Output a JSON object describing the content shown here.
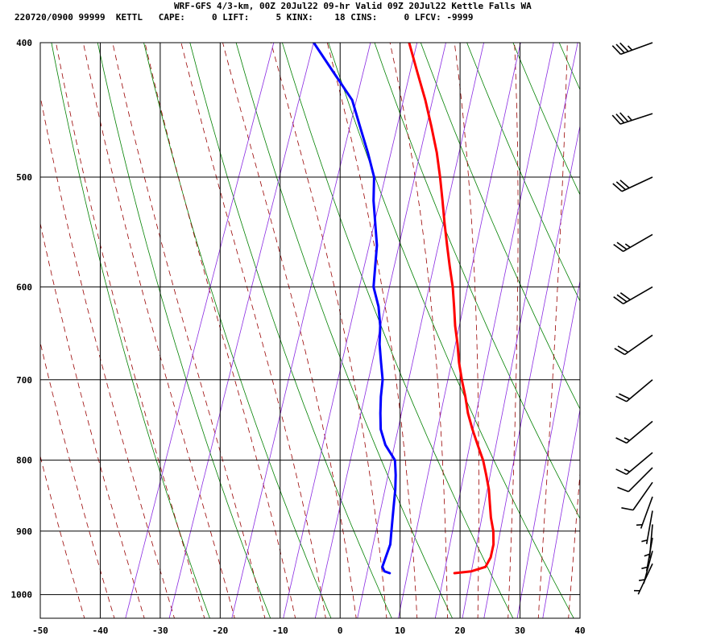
{
  "header": {
    "title": "WRF-GFS 4/3-km, 00Z 20Jul22 09-hr Valid 09Z 20Jul22 Kettle Falls WA",
    "stats": "220720/0900 99999  KETTL   CAPE:     0 LIFT:     5 KINX:    18 CINS:     0 LFCV: -9999"
  },
  "colors": {
    "temperature": "#ff0000",
    "dewpoint": "#0000ff",
    "dry_adiabat": "#008000",
    "moist_adiabat": "#990000",
    "mixing_ratio": "#8a2be2",
    "grid": "#000000",
    "wind_barb": "#000000"
  },
  "chart_data": {
    "type": "skew-t",
    "title": "WRF-GFS 4/3-km, 00Z 20Jul22 09-hr Valid 09Z 20Jul22 Kettle Falls WA",
    "xlabel": "",
    "ylabel": "",
    "x_ticks": [
      -50,
      -40,
      -30,
      -20,
      -10,
      0,
      10,
      20,
      30,
      40
    ],
    "x_tick_labels": [
      "-50",
      "-40",
      "-30",
      "-20",
      "-10",
      "0",
      "10",
      "20",
      "30",
      "40"
    ],
    "y_ticks": [
      400,
      500,
      600,
      700,
      800,
      900,
      1000
    ],
    "y_tick_labels": [
      "400",
      "500",
      "600",
      "700",
      "800",
      "900",
      "1000"
    ],
    "xlim": [
      -50,
      40
    ],
    "ylim": [
      1040,
      400
    ],
    "y_scale": "log",
    "grid": true,
    "series": [
      {
        "key": "temperature",
        "pressure": [
          965,
          962,
          955,
          940,
          920,
          900,
          880,
          860,
          840,
          820,
          800,
          780,
          760,
          740,
          720,
          700,
          680,
          660,
          640,
          620,
          600,
          580,
          560,
          540,
          520,
          500,
          480,
          460,
          440,
          420,
          400
        ],
        "values": [
          17.8,
          20.5,
          22.6,
          22.9,
          22.6,
          21.8,
          20.6,
          19.6,
          18.6,
          17.3,
          15.9,
          14.1,
          12.3,
          10.6,
          9.2,
          7.6,
          6.1,
          4.8,
          3.3,
          2.0,
          0.6,
          -1.1,
          -2.8,
          -4.5,
          -6.2,
          -8.0,
          -10.0,
          -12.4,
          -15.0,
          -18.0,
          -21.1
        ]
      },
      {
        "key": "dewpoint",
        "pressure": [
          965,
          962,
          955,
          940,
          920,
          900,
          880,
          860,
          840,
          820,
          800,
          780,
          760,
          740,
          720,
          700,
          680,
          660,
          640,
          620,
          600,
          560,
          520,
          500,
          480,
          460,
          440,
          420,
          400
        ],
        "values": [
          7.0,
          6.0,
          5.4,
          5.4,
          5.4,
          4.8,
          4.2,
          3.6,
          3.0,
          2.2,
          1.2,
          -1.3,
          -3.0,
          -4.0,
          -4.9,
          -5.6,
          -6.9,
          -8.2,
          -9.2,
          -10.6,
          -12.6,
          -14.5,
          -17.7,
          -19.0,
          -21.5,
          -24.3,
          -27.2,
          -32.0,
          -37.0
        ]
      }
    ],
    "wind_barbs": [
      {
        "pressure": 400,
        "direction": 250,
        "speed": 35
      },
      {
        "pressure": 450,
        "direction": 252,
        "speed": 35
      },
      {
        "pressure": 500,
        "direction": 245,
        "speed": 30
      },
      {
        "pressure": 550,
        "direction": 240,
        "speed": 25
      },
      {
        "pressure": 600,
        "direction": 240,
        "speed": 30
      },
      {
        "pressure": 650,
        "direction": 235,
        "speed": 20
      },
      {
        "pressure": 700,
        "direction": 230,
        "speed": 20
      },
      {
        "pressure": 750,
        "direction": 230,
        "speed": 15
      },
      {
        "pressure": 790,
        "direction": 230,
        "speed": 15
      },
      {
        "pressure": 810,
        "direction": 225,
        "speed": 10
      },
      {
        "pressure": 830,
        "direction": 215,
        "speed": 10
      },
      {
        "pressure": 850,
        "direction": 200,
        "speed": 5
      },
      {
        "pressure": 870,
        "direction": 190,
        "speed": 5
      },
      {
        "pressure": 890,
        "direction": 185,
        "speed": 5
      },
      {
        "pressure": 910,
        "direction": 190,
        "speed": 5
      },
      {
        "pressure": 930,
        "direction": 195,
        "speed": 5
      },
      {
        "pressure": 950,
        "direction": 205,
        "speed": 5
      }
    ]
  }
}
